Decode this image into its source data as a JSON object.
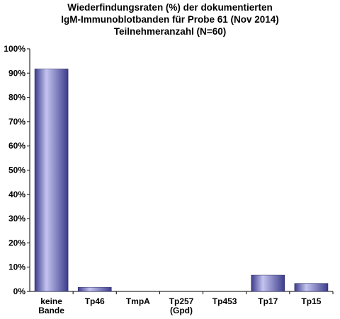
{
  "chart_data": {
    "type": "bar",
    "title_lines": [
      "Wiederfindungsraten (%)  der dokumentierten",
      "IgM-Immunoblotbanden  für Probe 61 (Nov 2014)",
      "Teilnehmeranzahl (N=60)"
    ],
    "categories": [
      [
        "keine",
        "Bande"
      ],
      [
        "Tp46"
      ],
      [
        "TmpA"
      ],
      [
        "Tp257",
        "(Gpd)"
      ],
      [
        "Tp453"
      ],
      [
        "Tp17"
      ],
      [
        "Tp15"
      ]
    ],
    "values": [
      91.7,
      1.7,
      0,
      0,
      0,
      6.7,
      3.3
    ],
    "ylim": [
      0,
      100
    ],
    "y_tick_step": 10,
    "y_tick_suffix": "%",
    "xlabel": "",
    "ylabel": "",
    "grid": false,
    "legend": "none",
    "bar_color_light": "#c4c4f0",
    "bar_color_dark": "#3c3c8c"
  }
}
